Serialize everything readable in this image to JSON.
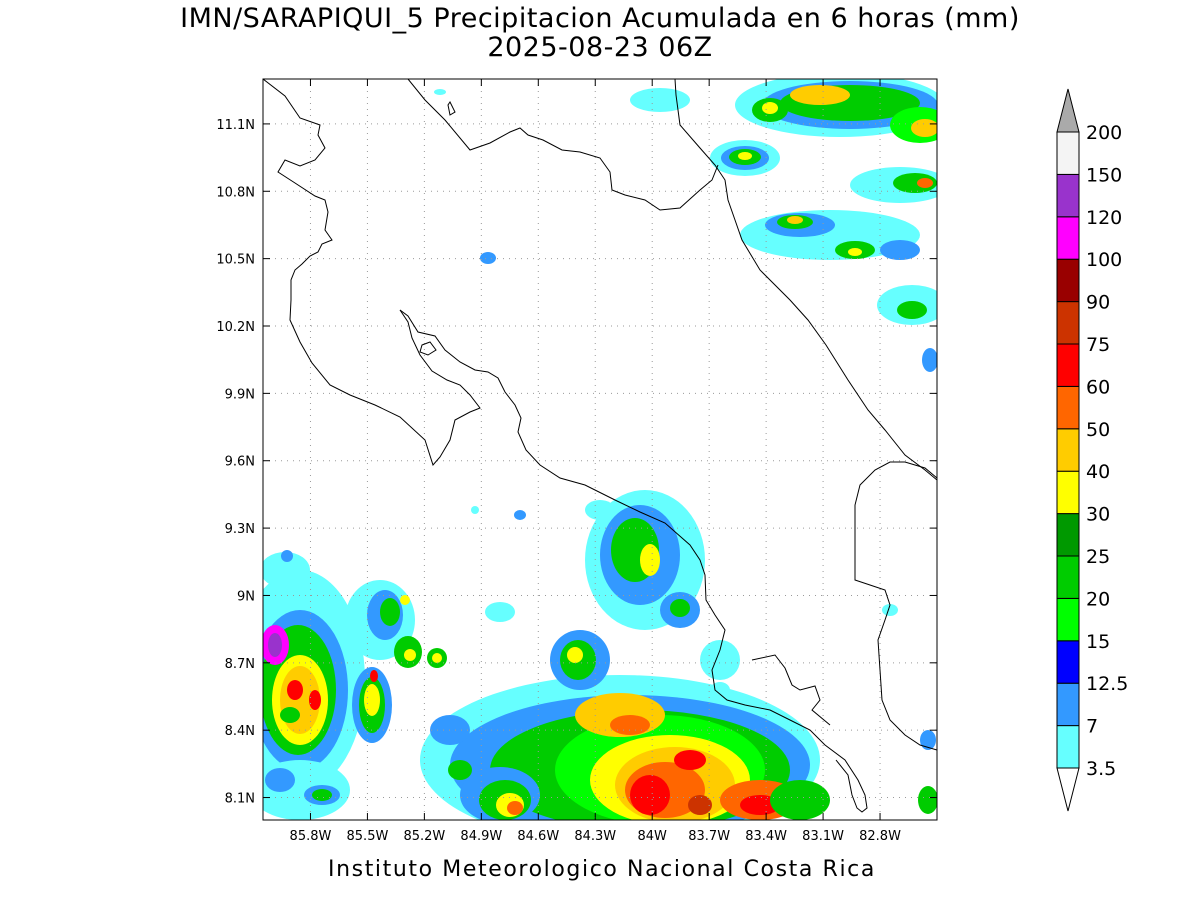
{
  "title": {
    "line1": "IMN/SARAPIQUI_5 Precipitacion Acumulada en 6 horas (mm)",
    "line2": "2025-08-23 06Z"
  },
  "footer": "Instituto Meteorologico Nacional Costa Rica",
  "map": {
    "lon_range": [
      -86.05,
      -82.5
    ],
    "lat_range": [
      8.0,
      11.3
    ],
    "lon_ticks": [
      {
        "value": -85.8,
        "label": "85.8W"
      },
      {
        "value": -85.5,
        "label": "85.5W"
      },
      {
        "value": -85.2,
        "label": "85.2W"
      },
      {
        "value": -84.9,
        "label": "84.9W"
      },
      {
        "value": -84.6,
        "label": "84.6W"
      },
      {
        "value": -84.3,
        "label": "84.3W"
      },
      {
        "value": -84.0,
        "label": "84W"
      },
      {
        "value": -83.7,
        "label": "83.7W"
      },
      {
        "value": -83.4,
        "label": "83.4W"
      },
      {
        "value": -83.1,
        "label": "83.1W"
      },
      {
        "value": -82.8,
        "label": "82.8W"
      }
    ],
    "lat_ticks": [
      {
        "value": 8.1,
        "label": "8.1N"
      },
      {
        "value": 8.4,
        "label": "8.4N"
      },
      {
        "value": 8.7,
        "label": "8.7N"
      },
      {
        "value": 9.0,
        "label": "9N"
      },
      {
        "value": 9.3,
        "label": "9.3N"
      },
      {
        "value": 9.6,
        "label": "9.6N"
      },
      {
        "value": 9.9,
        "label": "9.9N"
      },
      {
        "value": 10.2,
        "label": "10.2N"
      },
      {
        "value": 10.5,
        "label": "10.5N"
      },
      {
        "value": 10.8,
        "label": "10.8N"
      },
      {
        "value": 11.1,
        "label": "11.1N"
      }
    ],
    "grid": true
  },
  "legend": {
    "levels": [
      {
        "label": "3.5",
        "color": "#66ffff"
      },
      {
        "label": "7",
        "color": "#3399ff"
      },
      {
        "label": "12.5",
        "color": "#0000ff"
      },
      {
        "label": "15",
        "color": "#00ff00"
      },
      {
        "label": "20",
        "color": "#00cc00"
      },
      {
        "label": "25",
        "color": "#009900"
      },
      {
        "label": "30",
        "color": "#ffff00"
      },
      {
        "label": "40",
        "color": "#ffcc00"
      },
      {
        "label": "50",
        "color": "#ff6600"
      },
      {
        "label": "60",
        "color": "#ff0000"
      },
      {
        "label": "75",
        "color": "#cc3300"
      },
      {
        "label": "90",
        "color": "#990000"
      },
      {
        "label": "100",
        "color": "#ff00ff"
      },
      {
        "label": "120",
        "color": "#9933cc"
      },
      {
        "label": "150",
        "color": "#f4f4f4"
      },
      {
        "label": "200",
        "color": "#aaaaaa"
      }
    ]
  }
}
